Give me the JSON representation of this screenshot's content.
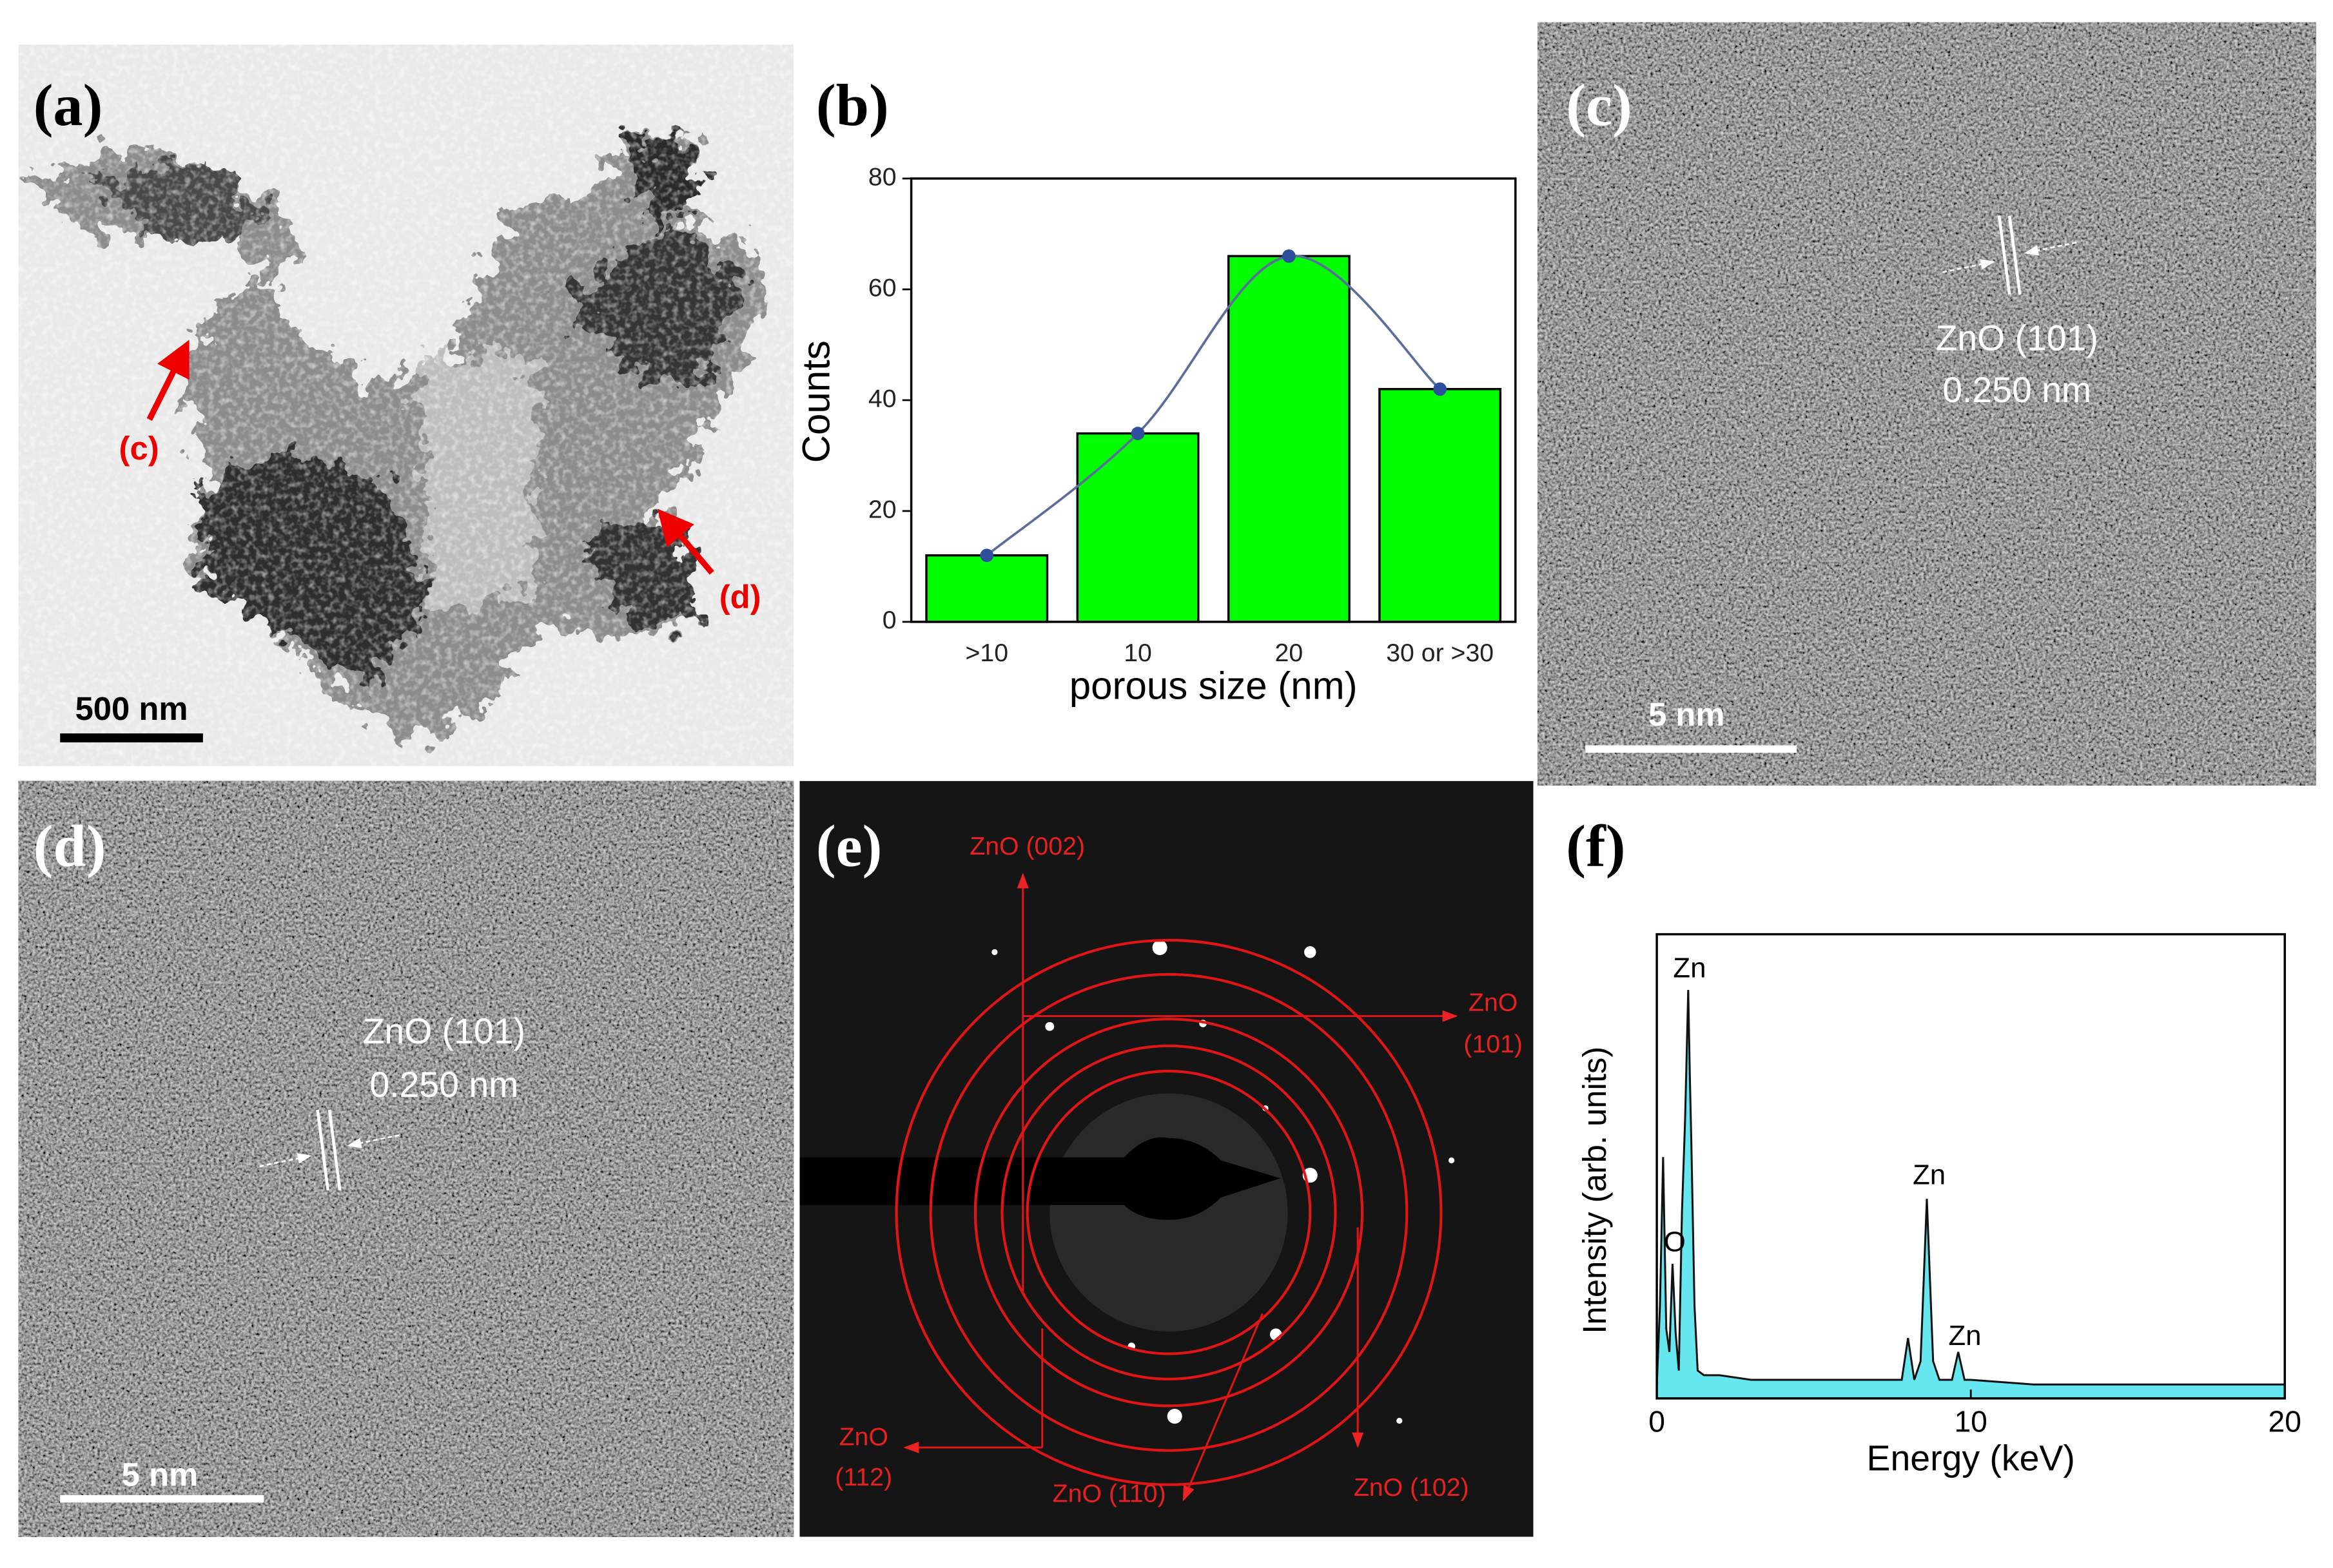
{
  "panels": {
    "a": {
      "label": "(a)",
      "scale_bar": "500 nm",
      "markers": [
        "(c)",
        "(d)"
      ]
    },
    "b": {
      "label": "(b)"
    },
    "c": {
      "label": "(c)",
      "plane": "ZnO (101)",
      "spacing": "0.250 nm",
      "scale_bar": "5 nm"
    },
    "d": {
      "label": "(d)",
      "plane": "ZnO (101)",
      "spacing": "0.250 nm",
      "scale_bar": "5 nm"
    },
    "e": {
      "label": "(e)",
      "rings": [
        [
          "ZnO (002)"
        ],
        [
          "ZnO",
          "(101)"
        ],
        [
          "ZnO",
          "(112)"
        ],
        [
          "ZnO (110)"
        ],
        [
          "ZnO (102)"
        ]
      ]
    },
    "f": {
      "label": "(f)"
    }
  },
  "chart_data": [
    {
      "type": "bar",
      "x_label": "porous size (nm)",
      "y_label": "Counts",
      "categories": [
        ">10",
        "10",
        "20",
        "30 or >30"
      ],
      "values": [
        12,
        34,
        66,
        42
      ],
      "color": "#00ff00",
      "line_color": "#5b6d9c",
      "marker_color": "#2f4e9e",
      "ylim": [
        0,
        80
      ],
      "yticks": [
        0,
        20,
        40,
        60,
        80
      ]
    },
    {
      "type": "area",
      "x_label": "Energy (keV)",
      "y_label": "Intensity (arb. units)",
      "x": [
        0,
        0.1,
        0.2,
        0.3,
        0.4,
        0.5,
        0.6,
        0.7,
        0.8,
        0.9,
        1.0,
        1.05,
        1.1,
        1.2,
        1.3,
        1.5,
        2,
        3,
        4,
        5,
        6,
        7,
        7.8,
        8.0,
        8.2,
        8.4,
        8.6,
        8.8,
        9.0,
        9.4,
        9.6,
        9.8,
        10,
        12,
        14,
        16,
        18,
        20
      ],
      "values": [
        3,
        20,
        52,
        15,
        10,
        29,
        14,
        6,
        40,
        60,
        88,
        70,
        55,
        20,
        6,
        5,
        5,
        4,
        4,
        4,
        4,
        4,
        4,
        13,
        4,
        8,
        43,
        8,
        4,
        4,
        10,
        4,
        4,
        3,
        3,
        3,
        3,
        3
      ],
      "color": "#66e6ee",
      "line_color": "#111111",
      "xlim": [
        0,
        20
      ],
      "xticks": [
        0,
        10,
        20
      ],
      "ylim": [
        0,
        100
      ],
      "annotations": [
        "Zn",
        "O",
        "Zn",
        "Zn"
      ]
    }
  ]
}
